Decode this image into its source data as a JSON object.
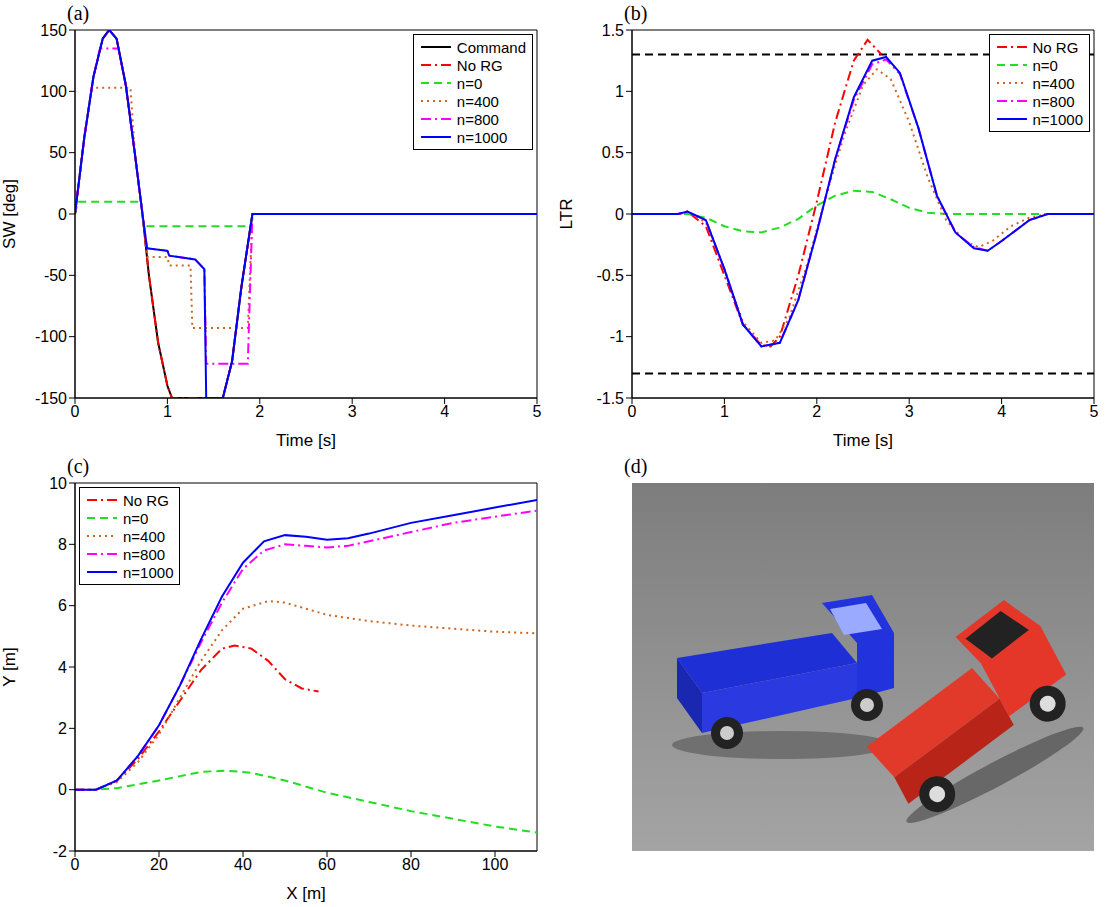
{
  "chart_data": [
    {
      "type": "line",
      "title": "(a)",
      "x_label": "Time [s]",
      "y_label": "SW [deg]",
      "xlim": [
        0,
        5
      ],
      "xticks": [
        0,
        1,
        2,
        3,
        4,
        5
      ],
      "ylim": [
        -150,
        150
      ],
      "yticks": [
        -150,
        -100,
        -50,
        0,
        50,
        100,
        150
      ],
      "legend": "upper right",
      "series": [
        {
          "name": "Command",
          "color": "#000000",
          "line_style": "solid",
          "x": [
            0,
            0.1,
            0.2,
            0.3,
            0.37,
            0.45,
            0.55,
            0.65,
            0.73,
            0.8,
            0.9,
            1.0,
            1.05,
            1.6,
            1.7,
            1.8,
            1.92,
            5
          ],
          "values": [
            0,
            62,
            112,
            143,
            150,
            143,
            105,
            48,
            0,
            -50,
            -105,
            -140,
            -150,
            -150,
            -120,
            -60,
            0,
            0
          ]
        },
        {
          "name": "No RG",
          "color": "#ff0000",
          "line_style": "dashdot",
          "x": [
            0,
            0.1,
            0.2,
            0.3,
            0.37,
            0.45,
            0.55,
            0.65,
            0.73,
            0.8,
            0.9,
            1.0,
            1.05,
            1.6,
            1.7,
            1.8,
            1.92,
            5
          ],
          "values": [
            0,
            62,
            112,
            143,
            150,
            143,
            105,
            48,
            0,
            -50,
            -105,
            -140,
            -150,
            -150,
            -120,
            -60,
            0,
            0
          ]
        },
        {
          "name": "n=0",
          "color": "#22dd22",
          "line_style": "dashed",
          "x": [
            0,
            0.03,
            0.72,
            0.74,
            1.9,
            1.92,
            5
          ],
          "values": [
            0,
            10,
            10,
            -10,
            -10,
            0,
            0
          ]
        },
        {
          "name": "n=400",
          "color": "#cc6622",
          "line_style": "dotted",
          "x": [
            0,
            0.1,
            0.18,
            0.6,
            0.65,
            0.73,
            0.78,
            1.0,
            1.02,
            1.25,
            1.27,
            1.87,
            1.92,
            5
          ],
          "values": [
            0,
            62,
            103,
            103,
            48,
            0,
            -35,
            -35,
            -42,
            -42,
            -93,
            -93,
            0,
            0
          ]
        },
        {
          "name": "n=800",
          "color": "#ff00ff",
          "line_style": "dashdot",
          "x": [
            0,
            0.1,
            0.2,
            0.27,
            0.47,
            0.55,
            0.65,
            0.73,
            0.78,
            1.0,
            1.02,
            1.3,
            1.4,
            1.42,
            1.87,
            1.92,
            5
          ],
          "values": [
            0,
            62,
            112,
            135,
            135,
            105,
            48,
            0,
            -28,
            -30,
            -34,
            -37,
            -45,
            -122,
            -122,
            0,
            0
          ]
        },
        {
          "name": "n=1000",
          "color": "#0000ff",
          "line_style": "solid",
          "x": [
            0,
            0.1,
            0.2,
            0.3,
            0.37,
            0.45,
            0.55,
            0.65,
            0.73,
            0.78,
            1.0,
            1.02,
            1.3,
            1.4,
            1.42,
            1.6,
            1.7,
            1.8,
            1.92,
            5
          ],
          "values": [
            0,
            62,
            112,
            143,
            150,
            143,
            105,
            48,
            0,
            -28,
            -30,
            -34,
            -37,
            -45,
            -150,
            -150,
            -120,
            -60,
            0,
            0
          ]
        }
      ]
    },
    {
      "type": "line",
      "title": "(b)",
      "x_label": "Time [s]",
      "y_label": "LTR",
      "xlim": [
        0,
        5
      ],
      "xticks": [
        0,
        1,
        2,
        3,
        4,
        5
      ],
      "ylim": [
        -1.5,
        1.5
      ],
      "yticks": [
        -1.5,
        -1,
        -0.5,
        0,
        0.5,
        1,
        1.5
      ],
      "legend": "upper right",
      "reference_lines": [
        1.3,
        -1.3
      ],
      "series": [
        {
          "name": "No RG",
          "color": "#ff0000",
          "line_style": "dashdot",
          "x": [
            0,
            0.5,
            0.6,
            0.8,
            1.0,
            1.2,
            1.4,
            1.5,
            1.6,
            1.8,
            2.0,
            2.2,
            2.4,
            2.55,
            2.7
          ],
          "values": [
            0,
            0,
            0.02,
            -0.1,
            -0.5,
            -0.9,
            -1.07,
            -1.08,
            -1.0,
            -0.5,
            0.1,
            0.75,
            1.25,
            1.42,
            1.3
          ]
        },
        {
          "name": "n=0",
          "color": "#22dd22",
          "line_style": "dashed",
          "x": [
            0,
            0.6,
            0.8,
            1.0,
            1.2,
            1.4,
            1.6,
            1.8,
            2.0,
            2.2,
            2.4,
            2.6,
            2.8,
            3.0,
            3.2,
            3.4,
            5
          ],
          "values": [
            0,
            0,
            -0.03,
            -0.1,
            -0.14,
            -0.15,
            -0.11,
            -0.04,
            0.07,
            0.15,
            0.19,
            0.18,
            0.12,
            0.05,
            0.01,
            0,
            0
          ]
        },
        {
          "name": "n=400",
          "color": "#cc6622",
          "line_style": "dotted",
          "x": [
            0,
            0.5,
            0.6,
            0.8,
            1.0,
            1.2,
            1.4,
            1.55,
            1.7,
            1.9,
            2.1,
            2.3,
            2.5,
            2.65,
            2.8,
            3.0,
            3.2,
            3.4,
            3.6,
            3.75,
            3.9,
            4.1,
            4.3,
            4.5,
            5
          ],
          "values": [
            0,
            0,
            0.02,
            -0.07,
            -0.45,
            -0.88,
            -1.05,
            -1.03,
            -0.85,
            -0.4,
            0.15,
            0.65,
            1.05,
            1.18,
            1.1,
            0.75,
            0.3,
            -0.05,
            -0.22,
            -0.27,
            -0.22,
            -0.1,
            -0.03,
            0,
            0
          ]
        },
        {
          "name": "n=800",
          "color": "#ff00ff",
          "line_style": "dashdot",
          "x": [
            0,
            0.5,
            0.6,
            0.8,
            1.0,
            1.2,
            1.4,
            1.6,
            1.8,
            2.0,
            2.2,
            2.4,
            2.6,
            2.75,
            2.9,
            3.1,
            3.3,
            3.5,
            3.7,
            3.85,
            4.0,
            4.3,
            4.5,
            5
          ],
          "values": [
            0,
            0,
            0.02,
            -0.05,
            -0.45,
            -0.9,
            -1.08,
            -1.05,
            -0.7,
            -0.15,
            0.45,
            0.93,
            1.22,
            1.26,
            1.14,
            0.7,
            0.15,
            -0.15,
            -0.27,
            -0.3,
            -0.22,
            -0.05,
            0,
            0
          ]
        },
        {
          "name": "n=1000",
          "color": "#0000ff",
          "line_style": "solid",
          "x": [
            0,
            0.5,
            0.6,
            0.8,
            1.0,
            1.2,
            1.4,
            1.6,
            1.8,
            2.0,
            2.2,
            2.4,
            2.6,
            2.75,
            2.9,
            3.1,
            3.3,
            3.5,
            3.7,
            3.85,
            4.0,
            4.3,
            4.5,
            5
          ],
          "values": [
            0,
            0,
            0.02,
            -0.05,
            -0.45,
            -0.9,
            -1.08,
            -1.05,
            -0.7,
            -0.15,
            0.45,
            0.95,
            1.25,
            1.28,
            1.15,
            0.7,
            0.15,
            -0.15,
            -0.28,
            -0.3,
            -0.22,
            -0.05,
            0,
            0
          ]
        }
      ]
    },
    {
      "type": "line",
      "title": "(c)",
      "x_label": "X [m]",
      "y_label": "Y [m]",
      "xlim": [
        0,
        110
      ],
      "xticks": [
        0,
        20,
        40,
        60,
        80,
        100
      ],
      "ylim": [
        -2,
        10
      ],
      "yticks": [
        -2,
        0,
        2,
        4,
        6,
        8,
        10
      ],
      "legend": "upper left",
      "series": [
        {
          "name": "No RG",
          "color": "#ff0000",
          "line_style": "dashdot",
          "x": [
            0,
            5,
            10,
            15,
            20,
            25,
            30,
            35,
            38,
            42,
            46,
            50,
            54,
            58
          ],
          "values": [
            0,
            0,
            0.3,
            1.0,
            1.9,
            2.9,
            3.9,
            4.6,
            4.7,
            4.6,
            4.2,
            3.6,
            3.3,
            3.2
          ]
        },
        {
          "name": "n=0",
          "color": "#22dd22",
          "line_style": "dashed",
          "x": [
            0,
            5,
            10,
            20,
            30,
            36,
            42,
            50,
            60,
            70,
            80,
            90,
            100,
            110
          ],
          "values": [
            0,
            0,
            0.05,
            0.3,
            0.58,
            0.62,
            0.55,
            0.3,
            -0.1,
            -0.4,
            -0.7,
            -0.95,
            -1.2,
            -1.4
          ]
        },
        {
          "name": "n=400",
          "color": "#cc6622",
          "line_style": "dotted",
          "x": [
            0,
            5,
            10,
            15,
            20,
            25,
            30,
            35,
            40,
            46,
            50,
            60,
            70,
            80,
            90,
            100,
            110
          ],
          "values": [
            0,
            0,
            0.25,
            0.9,
            1.8,
            3.0,
            4.2,
            5.2,
            5.9,
            6.15,
            6.1,
            5.7,
            5.5,
            5.35,
            5.25,
            5.15,
            5.1
          ]
        },
        {
          "name": "n=800",
          "color": "#ff00ff",
          "line_style": "dashdot",
          "x": [
            0,
            5,
            10,
            15,
            20,
            25,
            30,
            35,
            40,
            45,
            50,
            55,
            60,
            65,
            70,
            80,
            90,
            100,
            110
          ],
          "values": [
            0,
            0,
            0.3,
            1.1,
            2.1,
            3.4,
            4.8,
            6.1,
            7.2,
            7.8,
            8.0,
            7.95,
            7.9,
            7.95,
            8.1,
            8.4,
            8.7,
            8.9,
            9.1
          ]
        },
        {
          "name": "n=1000",
          "color": "#0000ff",
          "line_style": "solid",
          "x": [
            0,
            5,
            10,
            15,
            20,
            25,
            30,
            35,
            40,
            45,
            50,
            55,
            60,
            65,
            70,
            80,
            90,
            100,
            110
          ],
          "values": [
            0,
            0,
            0.3,
            1.1,
            2.1,
            3.4,
            4.9,
            6.3,
            7.4,
            8.1,
            8.3,
            8.25,
            8.15,
            8.2,
            8.35,
            8.7,
            8.95,
            9.2,
            9.45
          ]
        }
      ]
    },
    {
      "type": "image",
      "title": "(d)"
    }
  ]
}
